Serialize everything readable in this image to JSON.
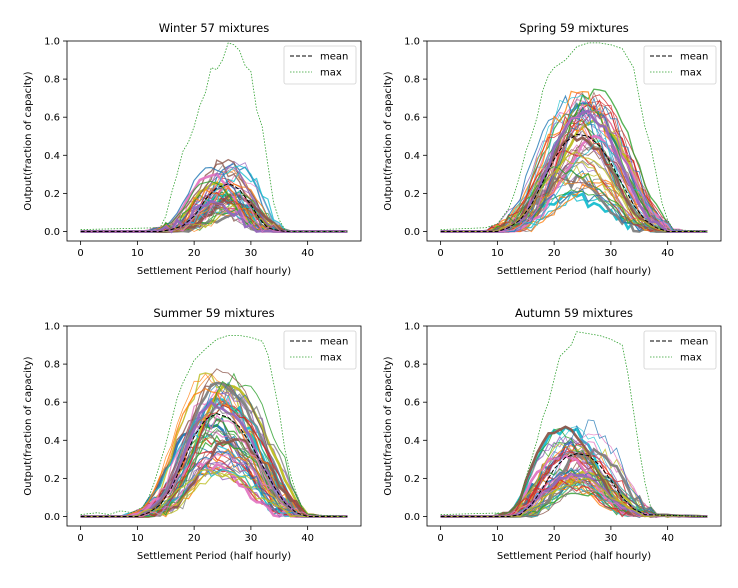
{
  "chart_data": [
    {
      "type": "line",
      "title": "Winter 57 mixtures",
      "xlabel": "Settlement Period (half hourly)",
      "ylabel": "Output(fraction of capacity)",
      "xlim": [
        -2.4,
        49.4
      ],
      "ylim": [
        -0.05,
        1.0
      ],
      "xticks": [
        "0",
        "10",
        "20",
        "30",
        "40"
      ],
      "yticks": [
        "0.0",
        "0.2",
        "0.4",
        "0.6",
        "0.8",
        "1.0"
      ],
      "legend_position": "top-right",
      "series": [
        {
          "name": "mean",
          "style": "dashed",
          "color": "#000000",
          "x": [
            0,
            14,
            16,
            18,
            20,
            21,
            22,
            23,
            24,
            25,
            26,
            27,
            28,
            29,
            30,
            31,
            32,
            33,
            34,
            36,
            47
          ],
          "y": [
            0,
            0,
            0.01,
            0.03,
            0.08,
            0.12,
            0.17,
            0.2,
            0.23,
            0.24,
            0.25,
            0.24,
            0.22,
            0.18,
            0.14,
            0.09,
            0.05,
            0.02,
            0.01,
            0,
            0
          ]
        },
        {
          "name": "max",
          "style": "dotted",
          "color": "#2ca02c",
          "x": [
            0,
            14,
            15,
            16,
            17,
            18,
            19,
            20,
            21,
            22,
            23,
            24,
            25,
            26,
            27,
            28,
            29,
            30,
            31,
            32,
            33,
            34,
            35,
            36,
            37,
            47
          ],
          "y": [
            0.01,
            0.02,
            0.08,
            0.2,
            0.3,
            0.42,
            0.47,
            0.55,
            0.66,
            0.73,
            0.86,
            0.85,
            0.9,
            0.99,
            0.98,
            0.95,
            0.87,
            0.84,
            0.64,
            0.55,
            0.35,
            0.15,
            0.06,
            0.01,
            0,
            0
          ]
        }
      ],
      "individual_mixtures": 57
    },
    {
      "type": "line",
      "title": "Spring 59 mixtures",
      "xlabel": "Settlement Period (half hourly)",
      "ylabel": "Output(fraction of capacity)",
      "xlim": [
        -2.4,
        49.4
      ],
      "ylim": [
        -0.05,
        1.0
      ],
      "xticks": [
        "0",
        "10",
        "20",
        "30",
        "40"
      ],
      "yticks": [
        "0.0",
        "0.2",
        "0.4",
        "0.6",
        "0.8",
        "1.0"
      ],
      "legend_position": "top-right",
      "series": [
        {
          "name": "mean",
          "style": "dashed",
          "color": "#000000",
          "x": [
            0,
            10,
            12,
            14,
            16,
            18,
            20,
            22,
            24,
            26,
            28,
            30,
            32,
            34,
            36,
            38,
            40,
            47
          ],
          "y": [
            0,
            0,
            0.02,
            0.06,
            0.14,
            0.26,
            0.38,
            0.47,
            0.51,
            0.5,
            0.45,
            0.36,
            0.25,
            0.14,
            0.06,
            0.02,
            0,
            0
          ]
        },
        {
          "name": "max",
          "style": "dotted",
          "color": "#2ca02c",
          "x": [
            0,
            8,
            10,
            12,
            13,
            14,
            15,
            16,
            17,
            18,
            19,
            20,
            22,
            24,
            26,
            28,
            30,
            32,
            34,
            35,
            36,
            37,
            38,
            39,
            40,
            41,
            47
          ],
          "y": [
            0.01,
            0.02,
            0.04,
            0.12,
            0.2,
            0.3,
            0.42,
            0.5,
            0.6,
            0.74,
            0.82,
            0.86,
            0.9,
            0.97,
            0.99,
            0.99,
            0.98,
            0.96,
            0.86,
            0.7,
            0.55,
            0.45,
            0.3,
            0.15,
            0.06,
            0.01,
            0
          ]
        }
      ],
      "individual_mixtures": 59
    },
    {
      "type": "line",
      "title": "Summer 59 mixtures",
      "xlabel": "Settlement Period (half hourly)",
      "ylabel": "Output(fraction of capacity)",
      "xlim": [
        -2.4,
        49.4
      ],
      "ylim": [
        -0.05,
        1.0
      ],
      "xticks": [
        "0",
        "10",
        "20",
        "30",
        "40"
      ],
      "yticks": [
        "0.0",
        "0.2",
        "0.4",
        "0.6",
        "0.8",
        "1.0"
      ],
      "legend_position": "top-right",
      "series": [
        {
          "name": "mean",
          "style": "dashed",
          "color": "#000000",
          "x": [
            0,
            10,
            12,
            14,
            16,
            18,
            20,
            22,
            24,
            26,
            28,
            30,
            32,
            34,
            36,
            38,
            40,
            47
          ],
          "y": [
            0,
            0,
            0.02,
            0.06,
            0.15,
            0.28,
            0.42,
            0.51,
            0.54,
            0.52,
            0.47,
            0.38,
            0.27,
            0.16,
            0.07,
            0.02,
            0,
            0
          ]
        },
        {
          "name": "max",
          "style": "dotted",
          "color": "#2ca02c",
          "x": [
            0,
            3,
            5,
            7,
            9,
            11,
            12,
            13,
            14,
            15,
            16,
            17,
            18,
            19,
            20,
            22,
            24,
            26,
            28,
            30,
            32,
            33,
            34,
            35,
            36,
            37,
            38,
            39,
            40,
            47
          ],
          "y": [
            0.01,
            0.02,
            0.01,
            0.03,
            0.02,
            0.05,
            0.1,
            0.18,
            0.28,
            0.38,
            0.5,
            0.62,
            0.7,
            0.76,
            0.82,
            0.88,
            0.93,
            0.95,
            0.95,
            0.94,
            0.92,
            0.85,
            0.7,
            0.55,
            0.35,
            0.22,
            0.12,
            0.05,
            0.01,
            0
          ]
        }
      ],
      "individual_mixtures": 59
    },
    {
      "type": "line",
      "title": "Autumn 59 mixtures",
      "xlabel": "Settlement Period (half hourly)",
      "ylabel": "Output(fraction of capacity)",
      "xlim": [
        -2.4,
        49.4
      ],
      "ylim": [
        -0.05,
        1.0
      ],
      "xticks": [
        "0",
        "10",
        "20",
        "30",
        "40"
      ],
      "yticks": [
        "0.0",
        "0.2",
        "0.4",
        "0.6",
        "0.8",
        "1.0"
      ],
      "legend_position": "top-right",
      "series": [
        {
          "name": "mean",
          "style": "dashed",
          "color": "#000000",
          "x": [
            0,
            12,
            14,
            16,
            18,
            20,
            22,
            24,
            26,
            28,
            30,
            32,
            34,
            36,
            47
          ],
          "y": [
            0,
            0,
            0.01,
            0.06,
            0.15,
            0.25,
            0.31,
            0.33,
            0.32,
            0.27,
            0.19,
            0.1,
            0.04,
            0.01,
            0
          ]
        },
        {
          "name": "max",
          "style": "dotted",
          "color": "#2ca02c",
          "x": [
            0,
            12,
            13,
            14,
            15,
            16,
            17,
            18,
            19,
            20,
            21,
            22,
            23,
            24,
            26,
            28,
            30,
            32,
            33,
            34,
            35,
            36,
            37,
            38,
            47
          ],
          "y": [
            0.01,
            0.02,
            0.05,
            0.1,
            0.2,
            0.3,
            0.4,
            0.52,
            0.6,
            0.72,
            0.84,
            0.87,
            0.9,
            0.97,
            0.96,
            0.95,
            0.93,
            0.9,
            0.75,
            0.55,
            0.35,
            0.18,
            0.05,
            0.01,
            0
          ]
        }
      ],
      "individual_mixtures": 59
    }
  ]
}
